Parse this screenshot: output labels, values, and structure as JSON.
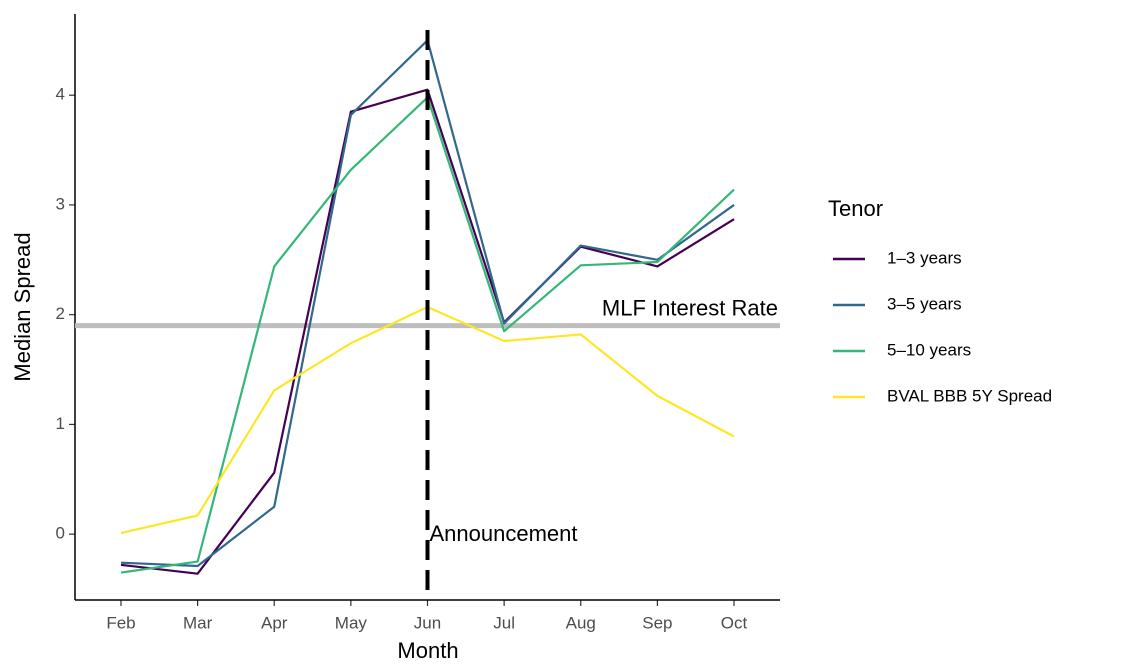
{
  "chart_data": {
    "type": "line",
    "x_label": "Month",
    "y_label": "Median Spread",
    "legend_title": "Tenor",
    "categories": [
      "Feb",
      "Mar",
      "Apr",
      "May",
      "Jun",
      "Jul",
      "Aug",
      "Sep",
      "Oct"
    ],
    "series": [
      {
        "name": "1–3 years",
        "color": "#440154",
        "values": [
          -0.28,
          -0.36,
          0.56,
          3.85,
          4.05,
          1.93,
          2.62,
          2.44,
          2.87
        ]
      },
      {
        "name": "3–5 years",
        "color": "#31688e",
        "values": [
          -0.26,
          -0.29,
          0.25,
          3.82,
          4.5,
          1.92,
          2.63,
          2.5,
          3.0
        ]
      },
      {
        "name": "5–10 years",
        "color": "#35b779",
        "values": [
          -0.35,
          -0.25,
          2.44,
          3.32,
          3.98,
          1.85,
          2.45,
          2.48,
          3.14
        ]
      },
      {
        "name": "BVAL BBB 5Y Spread",
        "color": "#fde725",
        "values": [
          0.01,
          0.17,
          1.31,
          1.74,
          2.07,
          1.76,
          1.82,
          1.26,
          0.89
        ]
      }
    ],
    "ylim": [
      -0.6,
      4.74
    ],
    "yticks": [
      0,
      1,
      2,
      3,
      4
    ],
    "hline": {
      "value": 1.9,
      "label": "MLF Interest Rate",
      "color": "#bebebe"
    },
    "vline": {
      "x": "Jun",
      "label": "Announcement",
      "color": "#000000"
    }
  }
}
